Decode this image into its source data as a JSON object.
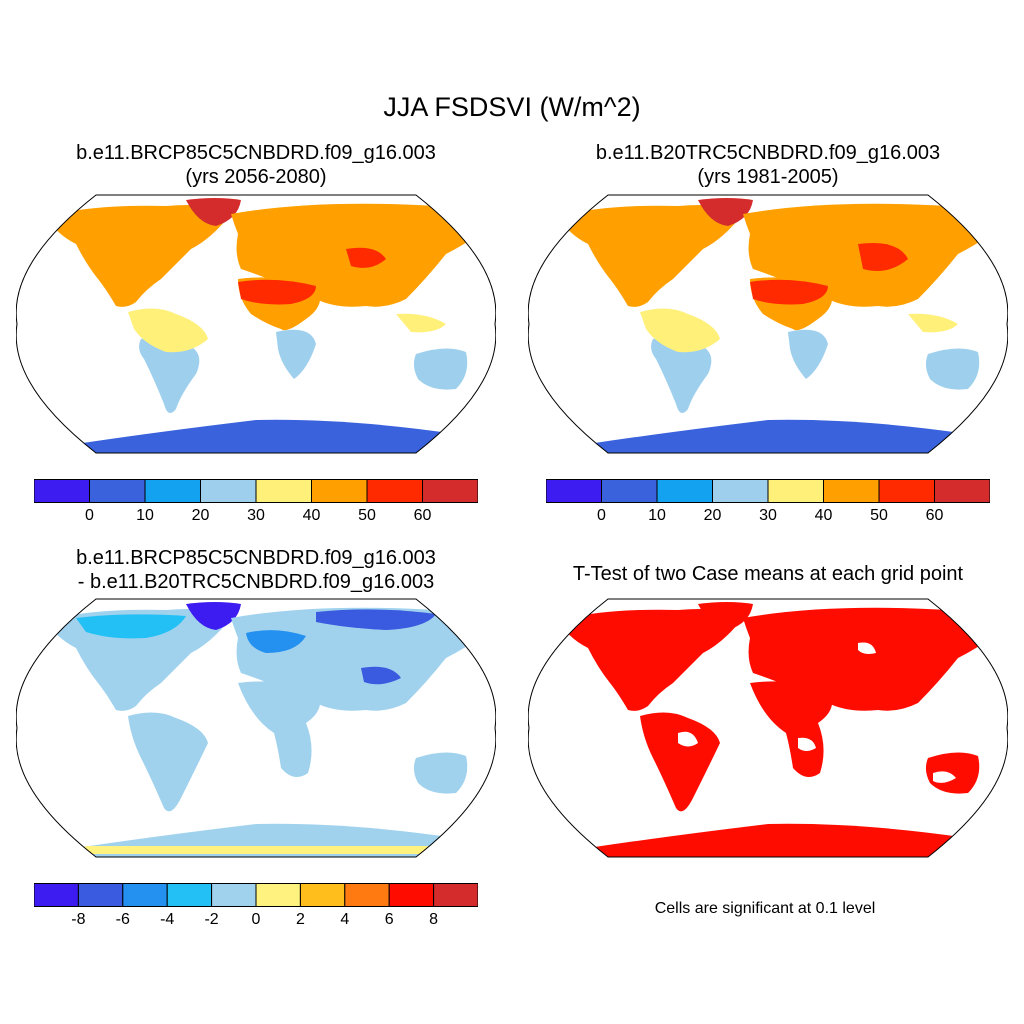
{
  "figure": {
    "title": "JJA FSDSVI (W/m^2)"
  },
  "panels": {
    "top_left": {
      "title_line1": "b.e11.BRCP85C5CNBDRD.f09_g16.003",
      "title_line2": "(yrs 2056-2080)"
    },
    "top_right": {
      "title_line1": "b.e11.B20TRC5CNBDRD.f09_g16.003",
      "title_line2": "(yrs 1981-2005)"
    },
    "bottom_left": {
      "title_line1": "b.e11.BRCP85C5CNBDRD.f09_g16.003",
      "title_line2": "- b.e11.B20TRC5CNBDRD.f09_g16.003"
    },
    "bottom_right": {
      "title_line1": "T-Test of two Case means at each grid point",
      "note": "Cells are significant at 0.1 level"
    }
  },
  "colorbars": {
    "abs": {
      "labels": [
        "0",
        "10",
        "20",
        "30",
        "40",
        "50",
        "60"
      ],
      "colors": [
        "#3c1cf0",
        "#3a62dc",
        "#12a2f0",
        "#9ed0ee",
        "#fff07a",
        "#ffa000",
        "#ff2a00",
        "#d42c2c"
      ]
    },
    "diff": {
      "labels": [
        "-8",
        "-6",
        "-4",
        "-2",
        "0",
        "2",
        "4",
        "6",
        "8"
      ],
      "colors": [
        "#3c1cf0",
        "#3a5ae0",
        "#2490f0",
        "#22c0f4",
        "#a0d2ee",
        "#fff27e",
        "#ffbe1c",
        "#ff7a10",
        "#ff0c00",
        "#d42c2c"
      ]
    }
  }
}
